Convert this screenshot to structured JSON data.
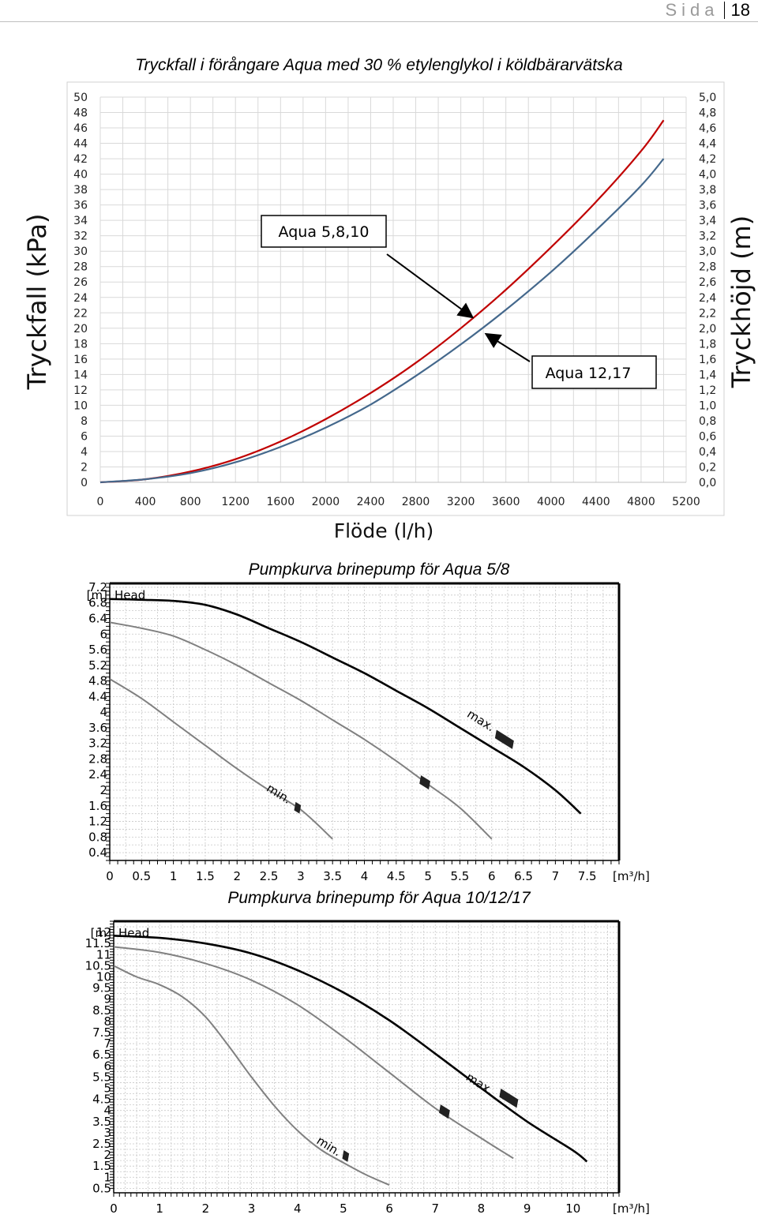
{
  "page": {
    "label": "Sida",
    "number": "18"
  },
  "chart_data": [
    {
      "type": "line",
      "title": "Tryckfall i förångare Aqua med 30 % etylenglykol i köldbärarvätska",
      "xlabel": "Flöde (l/h)",
      "ylabel": "Tryckfall (kPa)",
      "y2label": "Tryckhöjd (m)",
      "xlim": [
        0,
        5200
      ],
      "ylim": [
        0,
        50
      ],
      "y2lim": [
        0,
        5.0
      ],
      "grid": true,
      "x_ticks": [
        "0",
        "400",
        "800",
        "1200",
        "1600",
        "2000",
        "2400",
        "2800",
        "3200",
        "3600",
        "4000",
        "4400",
        "4800",
        "5200"
      ],
      "y_ticks": [
        "0",
        "2",
        "4",
        "6",
        "8",
        "10",
        "12",
        "14",
        "16",
        "18",
        "20",
        "22",
        "24",
        "26",
        "28",
        "30",
        "32",
        "34",
        "36",
        "38",
        "40",
        "42",
        "44",
        "46",
        "48",
        "50"
      ],
      "y2_ticks": [
        "0,0",
        "0,2",
        "0,4",
        "0,6",
        "0,8",
        "1,0",
        "1,2",
        "1,4",
        "1,6",
        "1,8",
        "2,0",
        "2,2",
        "2,4",
        "2,6",
        "2,8",
        "3,0",
        "3,2",
        "3,4",
        "3,6",
        "3,8",
        "4,0",
        "4,2",
        "4,4",
        "4,6",
        "4,8",
        "5,0"
      ],
      "series": [
        {
          "name": "Aqua 5,8,10",
          "color": "#c00000",
          "x": [
            0,
            400,
            800,
            1200,
            1600,
            2000,
            2400,
            2800,
            3200,
            3600,
            4000,
            4400,
            4800,
            5000
          ],
          "y": [
            0,
            0.4,
            1.4,
            3.0,
            5.3,
            8.2,
            11.6,
            15.5,
            20.0,
            25.0,
            30.5,
            36.4,
            43.0,
            47.0
          ]
        },
        {
          "name": "Aqua 12,17",
          "color": "#44688c",
          "x": [
            0,
            400,
            800,
            1200,
            1600,
            2000,
            2400,
            2800,
            3200,
            3600,
            4000,
            4400,
            4800,
            5000
          ],
          "y": [
            0,
            0.4,
            1.2,
            2.6,
            4.6,
            7.1,
            10.1,
            13.8,
            17.9,
            22.4,
            27.3,
            32.7,
            38.5,
            42.0
          ]
        }
      ],
      "annotations": [
        "Aqua 5,8,10",
        "Aqua 12,17"
      ]
    },
    {
      "type": "line",
      "title": "Pumpkurva brinepump för Aqua 5/8",
      "ylabel": "Head",
      "yunit": "[m]",
      "xunit": "[m³/h]",
      "xlim": [
        0,
        8
      ],
      "ylim": [
        0.2,
        7.3
      ],
      "grid": true,
      "x_ticks": [
        "0",
        "0.5",
        "1",
        "1.5",
        "2",
        "2.5",
        "3",
        "3.5",
        "4",
        "4.5",
        "5",
        "5.5",
        "6",
        "6.5",
        "7",
        "7.5"
      ],
      "y_ticks": [
        "0.4",
        "0.8",
        "1.2",
        "1.6",
        "2",
        "2.4",
        "2.8",
        "3.2",
        "3.6",
        "4",
        "4.4",
        "4.8",
        "5.2",
        "5.6",
        "6",
        "6.4",
        "6.8",
        "7.2"
      ],
      "series": [
        {
          "label": "max.",
          "color": "#000000",
          "x": [
            0,
            0.5,
            1,
            1.5,
            2,
            2.5,
            3,
            3.5,
            4,
            4.5,
            5,
            5.5,
            6,
            6.5,
            7,
            7.4
          ],
          "y": [
            6.9,
            6.88,
            6.85,
            6.75,
            6.5,
            6.15,
            5.8,
            5.4,
            5.0,
            4.55,
            4.1,
            3.6,
            3.1,
            2.6,
            2.0,
            1.4
          ]
        },
        {
          "label": "",
          "color": "#808080",
          "x": [
            0,
            0.5,
            1,
            1.5,
            2,
            2.5,
            3,
            3.5,
            4,
            4.5,
            5,
            5.5,
            6
          ],
          "y": [
            6.3,
            6.15,
            5.95,
            5.6,
            5.2,
            4.75,
            4.3,
            3.8,
            3.3,
            2.75,
            2.15,
            1.55,
            0.75
          ]
        },
        {
          "label": "min.",
          "color": "#808080",
          "x": [
            0,
            0.5,
            1,
            1.5,
            2,
            2.5,
            3,
            3.5
          ],
          "y": [
            4.85,
            4.35,
            3.75,
            3.15,
            2.55,
            2.0,
            1.5,
            0.75
          ]
        }
      ]
    },
    {
      "type": "line",
      "title": "Pumpkurva brinepump för Aqua 10/12/17",
      "ylabel": "Head",
      "yunit": "[m]",
      "xunit": "[m³/h]",
      "xlim": [
        0,
        11
      ],
      "ylim": [
        0.3,
        12.5
      ],
      "grid": true,
      "x_ticks": [
        "0",
        "1",
        "2",
        "3",
        "4",
        "5",
        "6",
        "7",
        "8",
        "9",
        "10"
      ],
      "y_ticks": [
        "0.5",
        "1",
        "1.5",
        "2",
        "2.5",
        "3",
        "3.5",
        "4",
        "4.5",
        "5",
        "5.5",
        "6",
        "6.5",
        "7",
        "7.5",
        "8",
        "8.5",
        "9",
        "9.5",
        "10",
        "10.5",
        "11",
        "11.5",
        "12"
      ],
      "series": [
        {
          "label": "max.",
          "color": "#000000",
          "x": [
            0,
            1,
            2,
            3,
            4,
            5,
            6,
            7,
            8,
            9,
            10,
            10.3
          ],
          "y": [
            11.85,
            11.75,
            11.5,
            11.05,
            10.3,
            9.3,
            8.05,
            6.55,
            5.0,
            3.5,
            2.2,
            1.7
          ]
        },
        {
          "label": "",
          "color": "#808080",
          "x": [
            0,
            1,
            2,
            3,
            4,
            5,
            6,
            7,
            8,
            8.7
          ],
          "y": [
            11.35,
            11.1,
            10.6,
            9.85,
            8.75,
            7.3,
            5.7,
            4.1,
            2.75,
            1.85
          ]
        },
        {
          "label": "min.",
          "color": "#808080",
          "x": [
            0,
            0.5,
            1,
            1.5,
            2,
            2.5,
            3,
            3.5,
            4,
            4.5,
            5,
            5.5,
            6
          ],
          "y": [
            10.5,
            10.0,
            9.65,
            9.1,
            8.2,
            6.9,
            5.5,
            4.2,
            3.1,
            2.25,
            1.65,
            1.1,
            0.65
          ]
        }
      ]
    }
  ]
}
